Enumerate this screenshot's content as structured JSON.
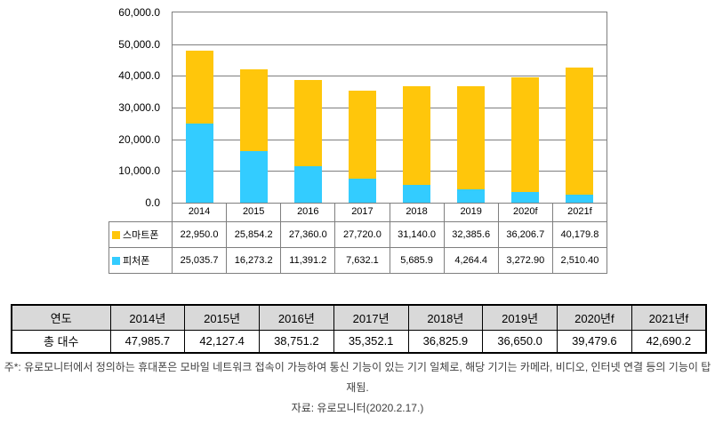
{
  "chart_data": {
    "type": "bar",
    "stacked": true,
    "categories": [
      "2014",
      "2015",
      "2016",
      "2017",
      "2018",
      "2019",
      "2020f",
      "2021f"
    ],
    "series": [
      {
        "name": "스마트폰",
        "color": "#FFC60B",
        "values": [
          22950.0,
          25854.2,
          27360.0,
          27720.0,
          31140.0,
          32385.6,
          36206.7,
          40179.8
        ],
        "labels": [
          "22,950.0",
          "25,854.2",
          "27,360.0",
          "27,720.0",
          "31,140.0",
          "32,385.6",
          "36,206.7",
          "40,179.8"
        ]
      },
      {
        "name": "피처폰",
        "color": "#33CCFF",
        "values": [
          25035.7,
          16273.2,
          11391.2,
          7632.1,
          5685.9,
          4264.4,
          3272.9,
          2510.4
        ],
        "labels": [
          "25,035.7",
          "16,273.2",
          "11,391.2",
          "7,632.1",
          "5,685.9",
          "4,264.4",
          "3,272.90",
          "2,510.40"
        ]
      }
    ],
    "stack_order_bottom_to_top": [
      "피처폰",
      "스마트폰"
    ],
    "ylim": [
      0,
      60000
    ],
    "ytick_step": 10000,
    "ytick_labels_top_to_bottom": [
      "60,000.0",
      "50,000.0",
      "40,000.0",
      "30,000.0",
      "20,000.0",
      "10,000.0",
      "0.0"
    ],
    "grid": true,
    "legend_position": "data-table-left"
  },
  "summary_table": {
    "header": [
      "연도",
      "2014년",
      "2015년",
      "2016년",
      "2017년",
      "2018년",
      "2019년",
      "2020년f",
      "2021년f"
    ],
    "row_label": "총 대수",
    "values": [
      "47,985.7",
      "42,127.4",
      "38,751.2",
      "35,352.1",
      "36,825.9",
      "36,650.0",
      "39,479.6",
      "42,690.2"
    ]
  },
  "footnotes": {
    "note": "주*: 유로모니터에서 정의하는 휴대폰은 모바일 네트워크 접속이 가능하여 통신 기능이 있는 기기 일체로, 해당 기기는 카메라, 비디오, 인터넷 연결 등의 기능이 탑재됨.",
    "source": "자료: 유로모니터(2020.2.17.)"
  },
  "colors": {
    "smartphone": "#FFC60B",
    "featurephone": "#33CCFF",
    "grid": "#7F7F7F",
    "summary_header_bg": "#D9D9D9"
  }
}
